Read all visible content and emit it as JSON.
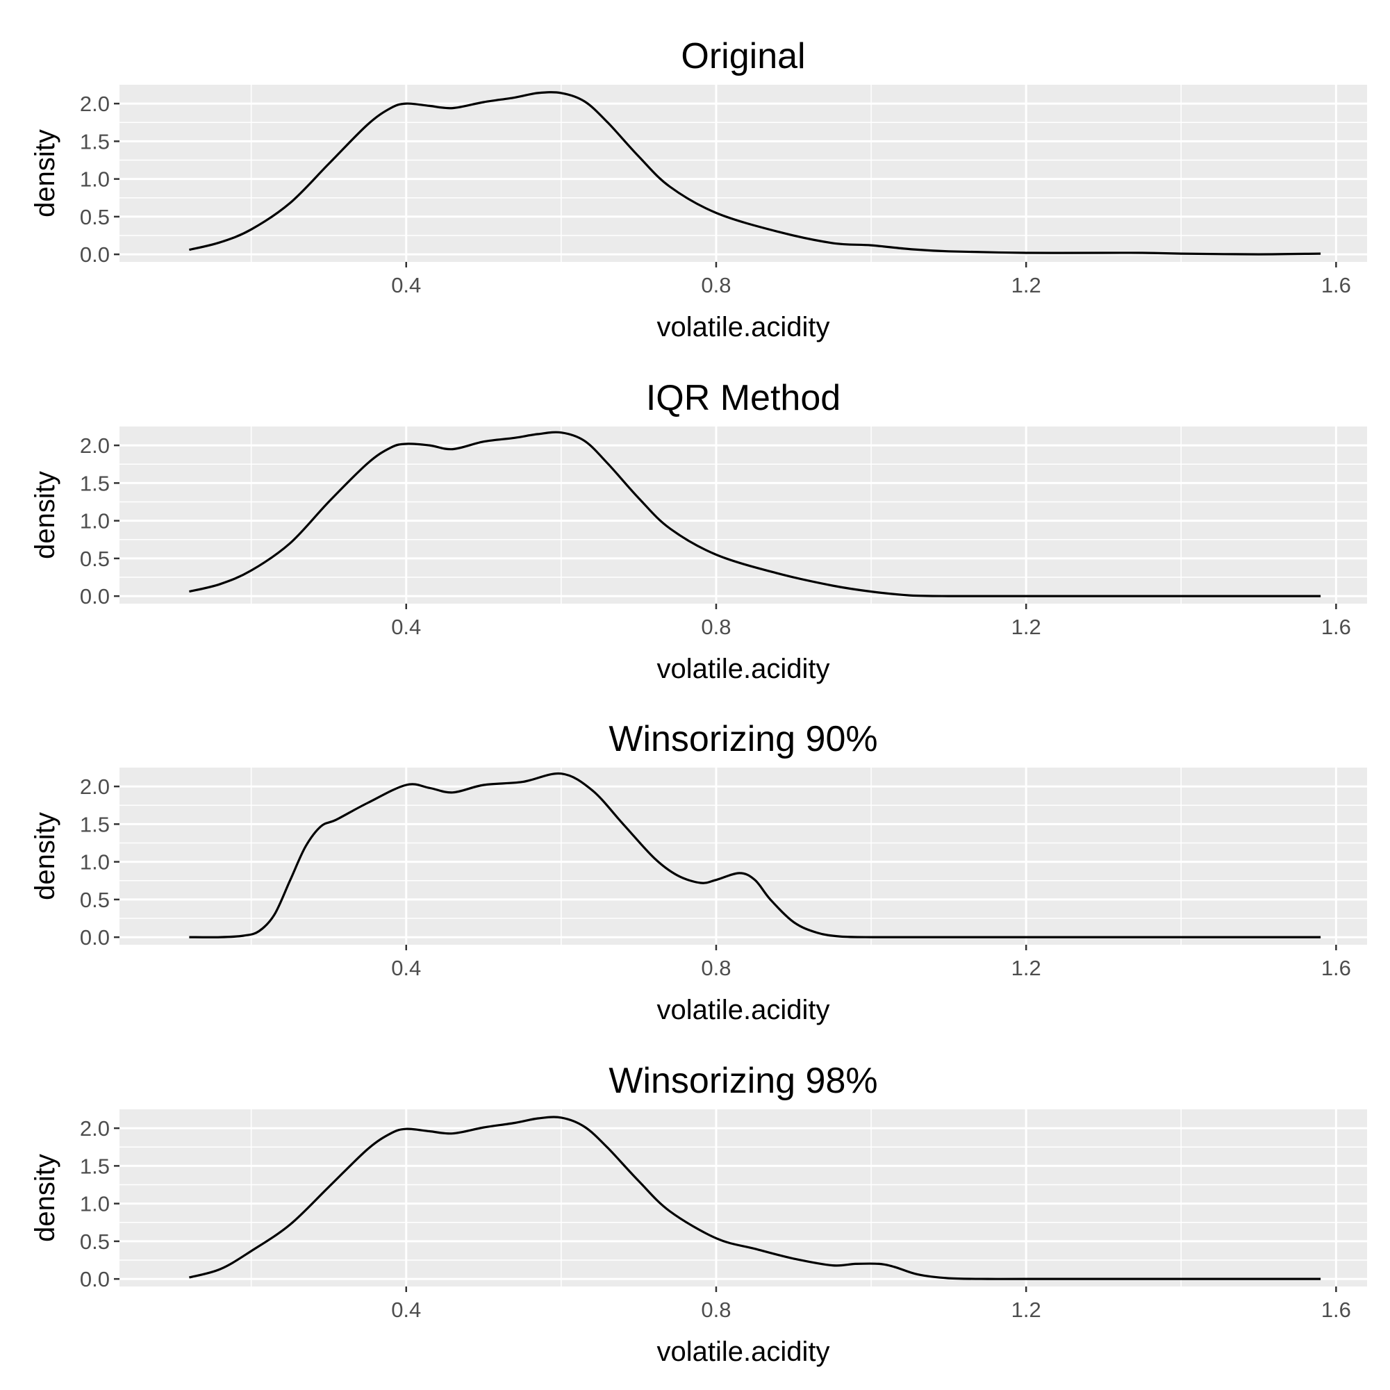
{
  "chart_data": [
    {
      "type": "line",
      "title": "Original",
      "xlabel": "volatile.acidity",
      "ylabel": "density",
      "xlim": [
        0.03,
        1.64
      ],
      "ylim": [
        -0.1,
        2.25
      ],
      "xticks": [
        "0.4",
        "0.8",
        "1.2",
        "1.6"
      ],
      "yticks": [
        "0.0",
        "0.5",
        "1.0",
        "1.5",
        "2.0"
      ],
      "grid": true,
      "x": [
        0.12,
        0.16,
        0.2,
        0.25,
        0.3,
        0.35,
        0.38,
        0.4,
        0.43,
        0.46,
        0.5,
        0.54,
        0.57,
        0.6,
        0.63,
        0.66,
        0.7,
        0.74,
        0.8,
        0.88,
        0.95,
        1.0,
        1.05,
        1.1,
        1.2,
        1.3,
        1.35,
        1.4,
        1.5,
        1.58
      ],
      "y": [
        0.06,
        0.16,
        0.33,
        0.68,
        1.2,
        1.72,
        1.94,
        2.0,
        1.97,
        1.94,
        2.02,
        2.08,
        2.14,
        2.14,
        2.03,
        1.75,
        1.3,
        0.9,
        0.55,
        0.3,
        0.15,
        0.12,
        0.07,
        0.04,
        0.02,
        0.02,
        0.02,
        0.01,
        0.0,
        0.01
      ]
    },
    {
      "type": "line",
      "title": "IQR Method",
      "xlabel": "volatile.acidity",
      "ylabel": "density",
      "xlim": [
        0.03,
        1.64
      ],
      "ylim": [
        -0.1,
        2.25
      ],
      "xticks": [
        "0.4",
        "0.8",
        "1.2",
        "1.6"
      ],
      "yticks": [
        "0.0",
        "0.5",
        "1.0",
        "1.5",
        "2.0"
      ],
      "grid": true,
      "x": [
        0.12,
        0.16,
        0.2,
        0.25,
        0.3,
        0.35,
        0.38,
        0.4,
        0.43,
        0.46,
        0.5,
        0.54,
        0.57,
        0.6,
        0.63,
        0.66,
        0.7,
        0.74,
        0.8,
        0.88,
        0.95,
        1.0,
        1.05,
        1.1,
        1.2,
        1.3,
        1.4,
        1.5,
        1.58
      ],
      "y": [
        0.06,
        0.16,
        0.34,
        0.7,
        1.25,
        1.76,
        1.97,
        2.02,
        2.0,
        1.95,
        2.05,
        2.1,
        2.15,
        2.17,
        2.06,
        1.76,
        1.3,
        0.9,
        0.55,
        0.3,
        0.14,
        0.06,
        0.01,
        0.0,
        0.0,
        0.0,
        0.0,
        0.0,
        0.0
      ]
    },
    {
      "type": "line",
      "title": "Winsorizing 90%",
      "xlabel": "volatile.acidity",
      "ylabel": "density",
      "xlim": [
        0.03,
        1.64
      ],
      "ylim": [
        -0.1,
        2.25
      ],
      "xticks": [
        "0.4",
        "0.8",
        "1.2",
        "1.6"
      ],
      "yticks": [
        "0.0",
        "0.5",
        "1.0",
        "1.5",
        "2.0"
      ],
      "grid": true,
      "x": [
        0.12,
        0.16,
        0.19,
        0.21,
        0.23,
        0.25,
        0.27,
        0.29,
        0.31,
        0.35,
        0.4,
        0.43,
        0.46,
        0.5,
        0.55,
        0.6,
        0.64,
        0.68,
        0.72,
        0.75,
        0.78,
        0.8,
        0.83,
        0.85,
        0.87,
        0.9,
        0.93,
        0.96,
        1.0,
        1.1,
        1.2,
        1.4,
        1.58
      ],
      "y": [
        0.0,
        0.0,
        0.02,
        0.08,
        0.3,
        0.75,
        1.2,
        1.47,
        1.56,
        1.78,
        2.02,
        1.98,
        1.92,
        2.02,
        2.06,
        2.17,
        1.95,
        1.5,
        1.05,
        0.82,
        0.72,
        0.76,
        0.85,
        0.76,
        0.5,
        0.2,
        0.06,
        0.01,
        0.0,
        0.0,
        0.0,
        0.0,
        0.0
      ]
    },
    {
      "type": "line",
      "title": "Winsorizing 98%",
      "xlabel": "volatile.acidity",
      "ylabel": "density",
      "xlim": [
        0.03,
        1.64
      ],
      "ylim": [
        -0.1,
        2.25
      ],
      "xticks": [
        "0.4",
        "0.8",
        "1.2",
        "1.6"
      ],
      "yticks": [
        "0.0",
        "0.5",
        "1.0",
        "1.5",
        "2.0"
      ],
      "grid": true,
      "x": [
        0.12,
        0.16,
        0.2,
        0.25,
        0.3,
        0.35,
        0.38,
        0.4,
        0.43,
        0.46,
        0.5,
        0.54,
        0.57,
        0.6,
        0.63,
        0.66,
        0.7,
        0.74,
        0.8,
        0.85,
        0.9,
        0.95,
        0.98,
        1.01,
        1.03,
        1.06,
        1.1,
        1.15,
        1.2,
        1.4,
        1.58
      ],
      "y": [
        0.02,
        0.13,
        0.37,
        0.72,
        1.22,
        1.72,
        1.93,
        1.99,
        1.96,
        1.93,
        2.01,
        2.07,
        2.13,
        2.14,
        2.02,
        1.74,
        1.3,
        0.9,
        0.54,
        0.4,
        0.27,
        0.18,
        0.2,
        0.2,
        0.16,
        0.06,
        0.01,
        0.0,
        0.0,
        0.0,
        0.0
      ]
    }
  ]
}
